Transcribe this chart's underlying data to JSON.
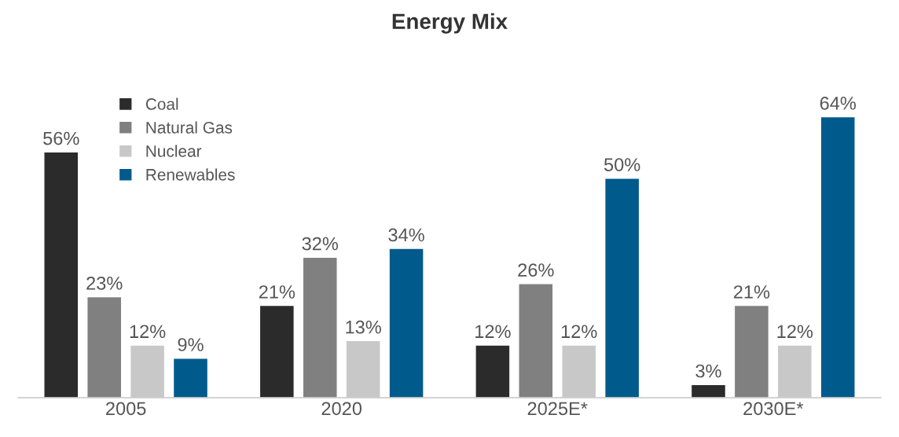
{
  "chart_data": {
    "type": "bar",
    "title": "Energy Mix",
    "categories": [
      "2005",
      "2020",
      "2025E*",
      "2030E*"
    ],
    "series": [
      {
        "name": "Coal",
        "color": "#2b2b2b",
        "values": [
          56,
          21,
          12,
          3
        ],
        "value_labels": [
          "56%",
          "21%",
          "12%",
          "3%"
        ]
      },
      {
        "name": "Natural Gas",
        "color": "#808080",
        "values": [
          23,
          32,
          26,
          21
        ],
        "value_labels": [
          "23%",
          "32%",
          "26%",
          "21%"
        ]
      },
      {
        "name": "Nuclear",
        "color": "#c8c8c8",
        "values": [
          12,
          13,
          12,
          12
        ],
        "value_labels": [
          "12%",
          "13%",
          "12%",
          "12%"
        ]
      },
      {
        "name": "Renewables",
        "color": "#005a8c",
        "values": [
          9,
          34,
          50,
          64
        ],
        "value_labels": [
          "9%",
          "34%",
          "50%",
          "64%"
        ]
      }
    ],
    "grid": false,
    "legend": "top left"
  }
}
